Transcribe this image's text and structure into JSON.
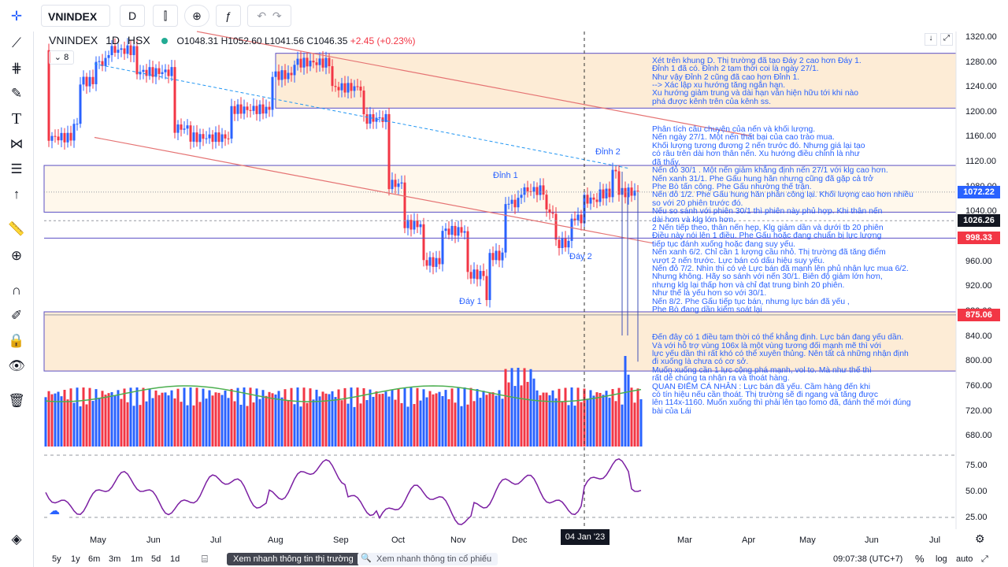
{
  "symbol": "VNINDEX",
  "interval": "D",
  "legend": {
    "symbol": "VNINDEX",
    "interval": "1D",
    "exchange": "HSX",
    "open": "O1048.31",
    "high": "H1052.60",
    "low": "L1041.56",
    "close": "C1046.35",
    "change": "+2.45 (+0.23%)",
    "indicator_count": "8"
  },
  "price_axis": {
    "ticks": [
      "1320.00",
      "1280.00",
      "1240.00",
      "1200.00",
      "1160.00",
      "1120.00",
      "1080.00",
      "1040.00",
      "1000.00",
      "960.00",
      "920.00",
      "880.00",
      "840.00",
      "800.00",
      "760.00",
      "720.00",
      "680.00"
    ],
    "tags": [
      {
        "label": "1072.22",
        "color": "#2962ff"
      },
      {
        "label": "1026.26",
        "color": "#131722"
      },
      {
        "label": "998.33",
        "color": "#f23645"
      },
      {
        "label": "875.06",
        "color": "#f23645"
      }
    ]
  },
  "rsi_axis": {
    "ticks": [
      "75.00",
      "50.00",
      "25.00"
    ]
  },
  "time_axis": {
    "ticks": [
      "May",
      "Jun",
      "Jul",
      "Aug",
      "Sep",
      "Oct",
      "Nov",
      "Dec",
      "Mar",
      "Apr",
      "May",
      "Jun",
      "Jul"
    ],
    "crosshair": "04 Jan '23"
  },
  "annotations": {
    "dinh1": "Đỉnh 1",
    "dinh2": "Đỉnh 2",
    "day1": "Đáy 1",
    "day2": "Đáy 2"
  },
  "notes": [
    "Xét trên khung D. Thị trường đã tạo Đáy 2 cao hơn Đáy 1.\nĐỉnh 1 đã có. Đỉnh 2 tạm thời coi là ngày 27/1.\nNhư vậy Đỉnh 2 cũng đã cao hơn Đỉnh 1.\n--> Xác lập xu hướng tăng ngắn hạn.\nXu hướng giảm trung và dài hạn vẫn hiện hữu tới khi nào\nphá được kênh trên của kênh ss.",
    "Phân tích câu chuyện của nến và khối lượng.\nNến ngày 27/1. Một nến thất bại của cao trào mua.\nKhối lượng tương đương 2 nến trước đó. Nhưng giá lại tạo\ncó râu trên dài hơn thân nến. Xu hướng điều chỉnh là như\nđã thấy.\nNến đỏ 30/1 . Một nến giảm khẳng định nến 27/1 với klg cao hơn.\nNến xanh 31/1. Phe Gấu hung hăn nhưng cũng đã gặp cả trở\nPhe Bò tấn công. Phe Gấu nhường thế trận.\nNến đỏ 1/2. Phe Gấu hung hăn phản công lại. Khối lượng cao hơn nhiều\nso với 20 phiên trước đó.\nNếu so sánh với phiên 30/1 thì phiên này phủ hợp. Khi thân nến\ndài hơn và klg lớn hơn.\n2 Nến tiếp theo, thân nến hẹp, Klg giảm dần và dưới tb 20 phiên\nĐiều này nói lên 1 điều. Phe Gấu hoặc đang chuẩn bị lực lượng\ntiếp tục đánh xuống hoặc đang suy yếu.\nNến xanh 6/2. Chỉ cần 1 lượng cầu nhỏ. Thị trường đã tăng điểm\nvượt 2 nến trước. Lực bán có dấu hiệu suy yếu.\nNến đỏ 7/2. Nhìn thì có vẻ Lực bán đã mạnh lên phủ nhận lực mua 6/2.\nNhưng không. Hãy so sánh với nến 30/1. Biên độ giảm lớn hơn,\nnhưng klg lại thấp hơn và chỉ đạt trung bình 20 phiên.\nNhư thế là yếu hơn so với 30/1.\nNến 8/2. Phe Gấu tiếp tục bán, nhưng lực bán đã yếu ,\nPhe Bò đang dần kiểm soát lại",
    "Đến đây có 1 điều tạm thời có thể khẳng định. Lực bán đang yếu dần.\nVà với hỗ trợ vùng 106x là một vùng tương đối mạnh mẽ thì với\nlực yếu dần thì rất khó có thể xuyên thủng. Nên tất cả những nhận định\nđi xuống là chưa có cơ sở.\nMuốn xuống cần 1 lực cộng phá mạnh, vol to. Mà như thế thì\nrất dễ chúng ta nhận ra và thoát hàng.\nQUAN ĐIỂM CÁ NHÂN : Lực bán đã yếu. Cầm hàng đến khi\ncó tín hiệu nếu cần thoát. Thị trường sẽ đi ngang và tăng được\nlên 114x-1160. Muốn xuống thì phải lên tạo fomo đã, đánh thế mới đúng\nbài của Lái"
  ],
  "bottom": {
    "ranges": [
      "5y",
      "1y",
      "6m",
      "3m",
      "1m",
      "5d",
      "1d"
    ],
    "btn_primary": "Xem nhanh thông tin thị trường",
    "search_placeholder": "Xem nhanh thông tin cổ phiếu",
    "clock": "09:07:38 (UTC+7)",
    "percent": "%",
    "log": "log",
    "auto": "auto"
  },
  "chart_data": {
    "type": "candlestick",
    "title": "VNINDEX 1D HSX",
    "x_range": [
      "2022-04",
      "2023-07"
    ],
    "ylim": [
      660,
      1330
    ],
    "horizontal_levels": [
      1072.22,
      1026.26,
      998.33,
      875.06
    ],
    "zones": [
      {
        "from": 1207,
        "to": 1295
      },
      {
        "from": 785,
        "to": 880
      },
      {
        "from": 1040,
        "to": 1115
      }
    ],
    "volume_color_up": "#2962ff",
    "volume_color_down": "#f23645",
    "rsi_range": [
      0,
      100
    ],
    "rsi_levels": [
      75,
      50,
      25
    ]
  }
}
